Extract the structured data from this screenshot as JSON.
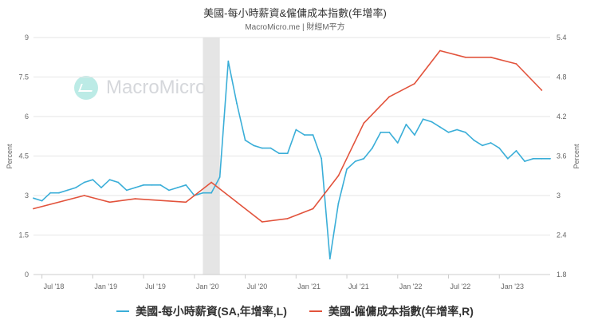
{
  "title": "美國-每小時薪資&僱傭成本指數(年增率)",
  "subtitle": "MacroMicro.me | 財經M平方",
  "watermark": "MacroMicro",
  "chart_data": {
    "type": "line",
    "shaded_period": [
      "2020-02",
      "2020-04"
    ],
    "x_ticks": [
      {
        "date": "2018-07",
        "label": "Jul '18"
      },
      {
        "date": "2019-01",
        "label": "Jan '19"
      },
      {
        "date": "2019-07",
        "label": "Jul '19"
      },
      {
        "date": "2020-01",
        "label": "Jan '20"
      },
      {
        "date": "2020-07",
        "label": "Jul '20"
      },
      {
        "date": "2021-01",
        "label": "Jan '21"
      },
      {
        "date": "2021-07",
        "label": "Jul '21"
      },
      {
        "date": "2022-01",
        "label": "Jan '22"
      },
      {
        "date": "2022-07",
        "label": "Jul '22"
      },
      {
        "date": "2023-01",
        "label": "Jan '23"
      }
    ],
    "x_range": [
      "2018-06",
      "2023-07"
    ],
    "y_left": {
      "label": "Percent",
      "min": 0,
      "max": 9,
      "ticks": [
        "0",
        "1.5",
        "3",
        "4.5",
        "6",
        "7.5",
        "9"
      ]
    },
    "y_right": {
      "label": "Percent",
      "min": 1.8,
      "max": 5.4,
      "ticks": [
        "1.8",
        "2.4",
        "3",
        "3.6",
        "4.2",
        "4.8",
        "5.4"
      ]
    },
    "grid": true,
    "series": [
      {
        "name": "美國-每小時薪資(SA,年增率,L)",
        "axis": "left",
        "color": "#3aaed8",
        "points": [
          [
            "2018-06",
            2.9
          ],
          [
            "2018-07",
            2.8
          ],
          [
            "2018-08",
            3.1
          ],
          [
            "2018-09",
            3.1
          ],
          [
            "2018-10",
            3.2
          ],
          [
            "2018-11",
            3.3
          ],
          [
            "2018-12",
            3.5
          ],
          [
            "2019-01",
            3.6
          ],
          [
            "2019-02",
            3.3
          ],
          [
            "2019-03",
            3.6
          ],
          [
            "2019-04",
            3.5
          ],
          [
            "2019-05",
            3.2
          ],
          [
            "2019-06",
            3.3
          ],
          [
            "2019-07",
            3.4
          ],
          [
            "2019-08",
            3.4
          ],
          [
            "2019-09",
            3.4
          ],
          [
            "2019-10",
            3.2
          ],
          [
            "2019-11",
            3.3
          ],
          [
            "2019-12",
            3.4
          ],
          [
            "2020-01",
            3.0
          ],
          [
            "2020-02",
            3.1
          ],
          [
            "2020-03",
            3.1
          ],
          [
            "2020-04",
            3.7
          ],
          [
            "2020-05",
            8.1
          ],
          [
            "2020-06",
            6.5
          ],
          [
            "2020-07",
            5.1
          ],
          [
            "2020-08",
            4.9
          ],
          [
            "2020-09",
            4.8
          ],
          [
            "2020-10",
            4.8
          ],
          [
            "2020-11",
            4.6
          ],
          [
            "2020-12",
            4.6
          ],
          [
            "2021-01",
            5.5
          ],
          [
            "2021-02",
            5.3
          ],
          [
            "2021-03",
            5.3
          ],
          [
            "2021-04",
            4.4
          ],
          [
            "2021-05",
            0.6
          ],
          [
            "2021-06",
            2.7
          ],
          [
            "2021-07",
            4.0
          ],
          [
            "2021-08",
            4.3
          ],
          [
            "2021-09",
            4.4
          ],
          [
            "2021-10",
            4.8
          ],
          [
            "2021-11",
            5.4
          ],
          [
            "2021-12",
            5.4
          ],
          [
            "2022-01",
            5.0
          ],
          [
            "2022-02",
            5.7
          ],
          [
            "2022-03",
            5.3
          ],
          [
            "2022-04",
            5.9
          ],
          [
            "2022-05",
            5.8
          ],
          [
            "2022-06",
            5.6
          ],
          [
            "2022-07",
            5.4
          ],
          [
            "2022-08",
            5.5
          ],
          [
            "2022-09",
            5.4
          ],
          [
            "2022-10",
            5.1
          ],
          [
            "2022-11",
            4.9
          ],
          [
            "2022-12",
            5.0
          ],
          [
            "2023-01",
            4.8
          ],
          [
            "2023-02",
            4.4
          ],
          [
            "2023-03",
            4.7
          ],
          [
            "2023-04",
            4.3
          ],
          [
            "2023-05",
            4.4
          ],
          [
            "2023-06",
            4.4
          ],
          [
            "2023-07",
            4.4
          ]
        ]
      },
      {
        "name": "美國-僱傭成本指數(年增率,R)",
        "axis": "right",
        "color": "#e2533c",
        "points": [
          [
            "2018-06",
            2.8
          ],
          [
            "2018-12",
            3.0
          ],
          [
            "2019-03",
            2.9
          ],
          [
            "2019-06",
            2.95
          ],
          [
            "2019-12",
            2.9
          ],
          [
            "2020-03",
            3.2
          ],
          [
            "2020-06",
            2.9
          ],
          [
            "2020-09",
            2.6
          ],
          [
            "2020-12",
            2.65
          ],
          [
            "2021-03",
            2.8
          ],
          [
            "2021-06",
            3.3
          ],
          [
            "2021-09",
            4.1
          ],
          [
            "2021-12",
            4.5
          ],
          [
            "2022-03",
            4.7
          ],
          [
            "2022-06",
            5.2
          ],
          [
            "2022-09",
            5.1
          ],
          [
            "2022-12",
            5.1
          ],
          [
            "2023-03",
            5.0
          ],
          [
            "2023-06",
            4.6
          ]
        ]
      }
    ]
  }
}
